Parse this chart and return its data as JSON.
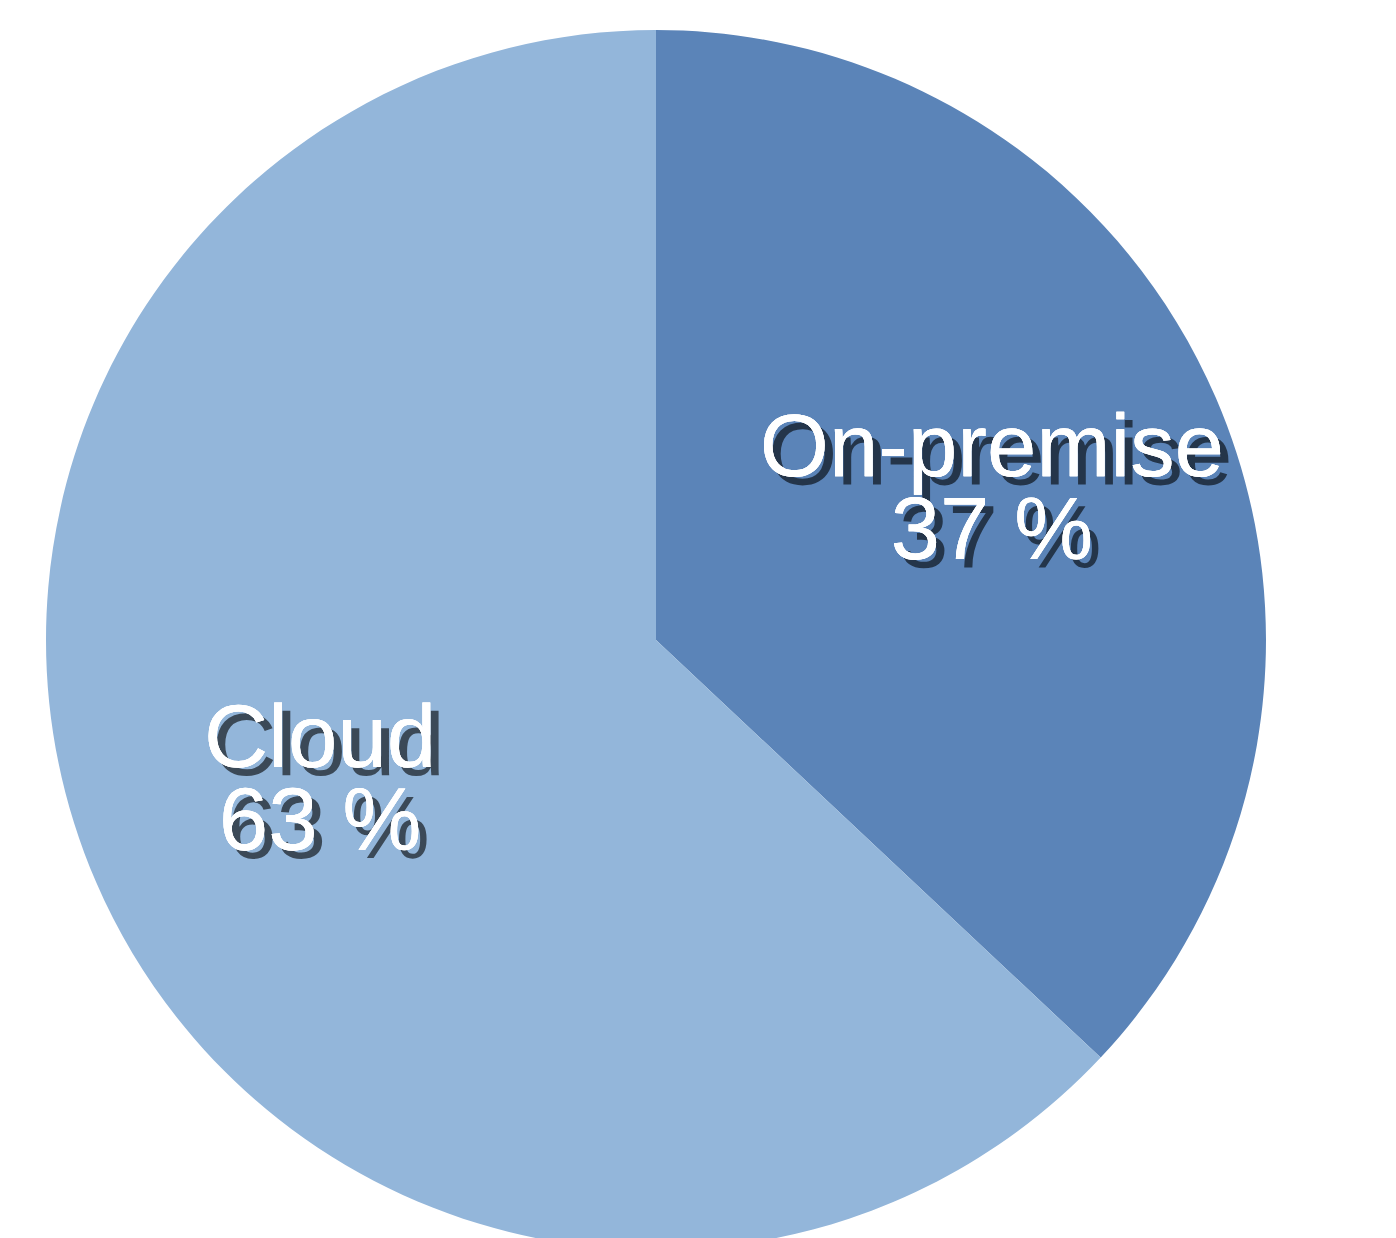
{
  "chart_data": {
    "type": "pie",
    "categories": [
      "On-premise",
      "Cloud"
    ],
    "values": [
      37,
      63
    ],
    "value_labels": [
      "37 %",
      "63 %"
    ],
    "colors": [
      "#5b84b8",
      "#93b6da"
    ]
  }
}
